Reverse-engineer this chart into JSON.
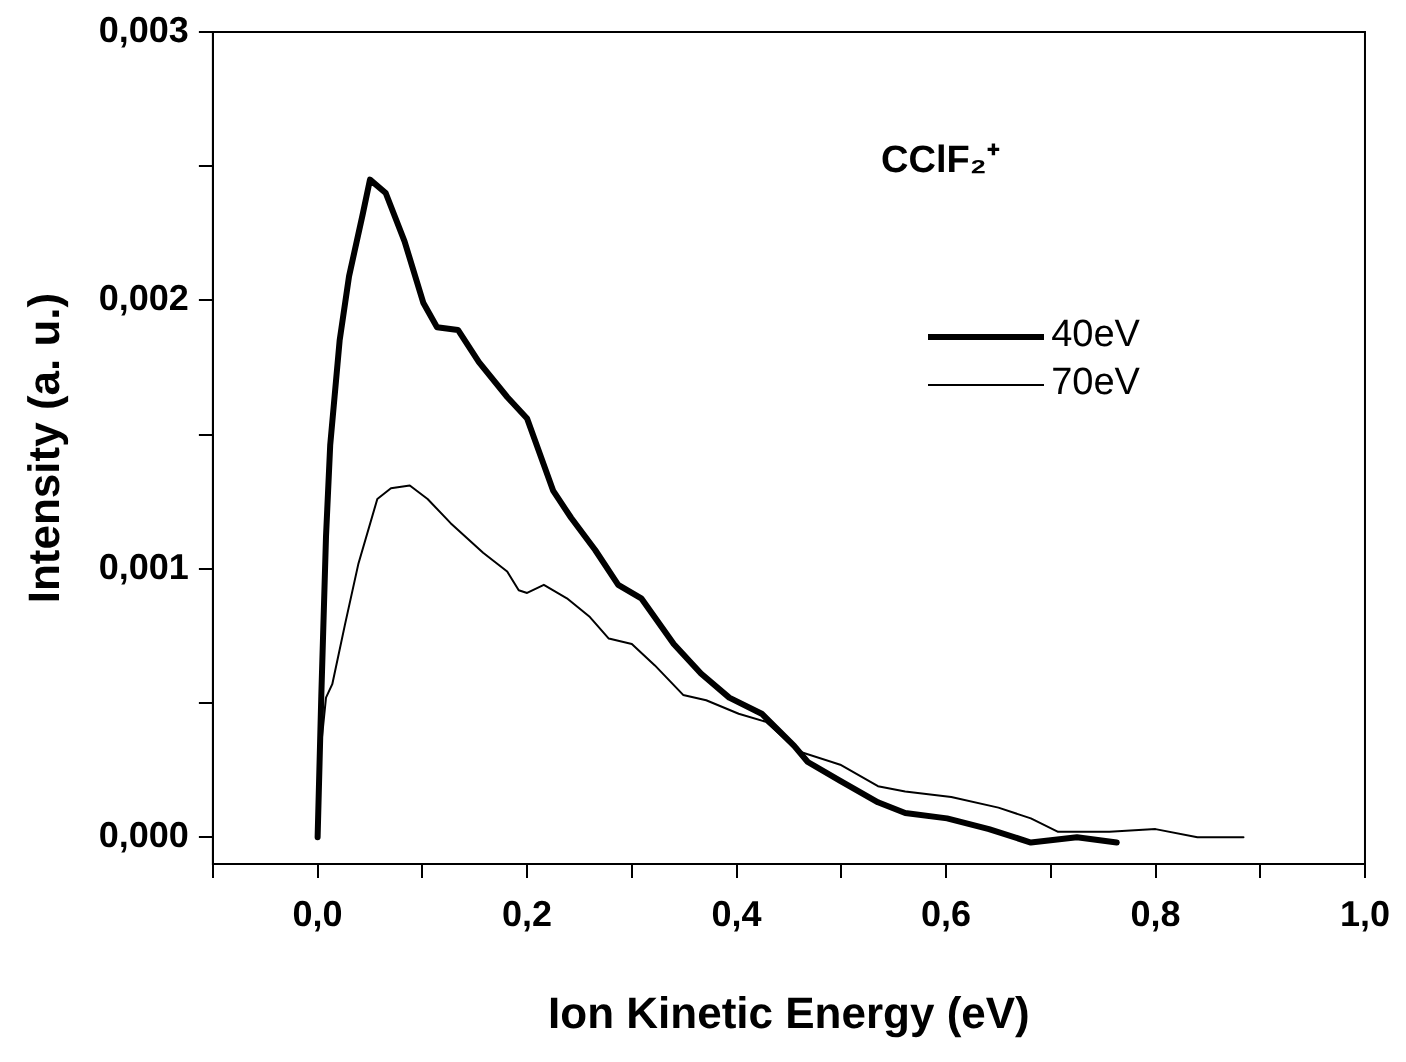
{
  "chart_data": {
    "type": "line",
    "xlabel": "Ion Kinetic Energy (eV)",
    "ylabel": "Intensity (a. u.)",
    "annotations": [
      "CClF₂⁺"
    ],
    "xlim": [
      -0.1,
      1.0
    ],
    "ylim": [
      -0.0001,
      0.003
    ],
    "xticks": [
      {
        "value": -0.1,
        "label": null
      },
      {
        "value": 0.0,
        "label": "0,0"
      },
      {
        "value": 0.1,
        "label": null
      },
      {
        "value": 0.2,
        "label": "0,2"
      },
      {
        "value": 0.3,
        "label": null
      },
      {
        "value": 0.4,
        "label": "0,4"
      },
      {
        "value": 0.5,
        "label": null
      },
      {
        "value": 0.6,
        "label": "0,6"
      },
      {
        "value": 0.7,
        "label": null
      },
      {
        "value": 0.8,
        "label": "0,8"
      },
      {
        "value": 0.9,
        "label": null
      },
      {
        "value": 1.0,
        "label": "1,0"
      }
    ],
    "yticks": [
      {
        "value": 0,
        "label": "0,000"
      },
      {
        "value": 0.0005,
        "label": null
      },
      {
        "value": 0.001,
        "label": "0,001"
      },
      {
        "value": 0.0015,
        "label": null
      },
      {
        "value": 0.002,
        "label": "0,002"
      },
      {
        "value": 0.0025,
        "label": null
      },
      {
        "value": 0.003,
        "label": "0,003"
      }
    ],
    "grid": false,
    "legend": "top right",
    "marker": "none",
    "line_style": "solid",
    "series": [
      {
        "name": "40eV",
        "color": "#000000",
        "x": [
          0,
          0.0035,
          0.008,
          0.012,
          0.021,
          0.03,
          0.043,
          0.05,
          0.065,
          0.083,
          0.101,
          0.114,
          0.134,
          0.154,
          0.181,
          0.2,
          0.225,
          0.242,
          0.265,
          0.287,
          0.309,
          0.34,
          0.366,
          0.393,
          0.424,
          0.455,
          0.468,
          0.499,
          0.535,
          0.561,
          0.601,
          0.641,
          0.681,
          0.725,
          0.763
        ],
        "values": [
          0,
          0.000525,
          0.00112,
          0.00146,
          0.00185,
          0.00209,
          0.00232,
          0.00245,
          0.0024,
          0.00222,
          0.00199,
          0.0019,
          0.00189,
          0.00177,
          0.00164,
          0.00156,
          0.00129,
          0.00119,
          0.00107,
          0.00094,
          0.00089,
          0.00072,
          0.00061,
          0.00052,
          0.00046,
          0.00034,
          0.00028,
          0.00021,
          0.00013,
          9e-05,
          7e-05,
          3e-05,
          -2e-05,
          0,
          -2e-05
        ]
      },
      {
        "name": "70eV",
        "color": "#000000",
        "x": [
          0,
          0.002,
          0.008,
          0.014,
          0.026,
          0.039,
          0.057,
          0.07,
          0.088,
          0.105,
          0.127,
          0.158,
          0.181,
          0.192,
          0.2,
          0.216,
          0.238,
          0.26,
          0.278,
          0.3,
          0.322,
          0.349,
          0.371,
          0.402,
          0.428,
          0.459,
          0.499,
          0.535,
          0.561,
          0.605,
          0.65,
          0.681,
          0.707,
          0.756,
          0.8,
          0.84,
          0.884
        ],
        "values": [
          0,
          0.00029,
          0.00052,
          0.00057,
          0.00079,
          0.00102,
          0.00126,
          0.0013,
          0.00131,
          0.00126,
          0.00117,
          0.00106,
          0.00099,
          0.00092,
          0.00091,
          0.00094,
          0.00089,
          0.00082,
          0.00074,
          0.00072,
          0.00064,
          0.00053,
          0.00051,
          0.00046,
          0.00043,
          0.00032,
          0.00027,
          0.00019,
          0.00017,
          0.00015,
          0.00011,
          7e-05,
          2e-05,
          2e-05,
          3e-05,
          0,
          0
        ]
      }
    ]
  }
}
